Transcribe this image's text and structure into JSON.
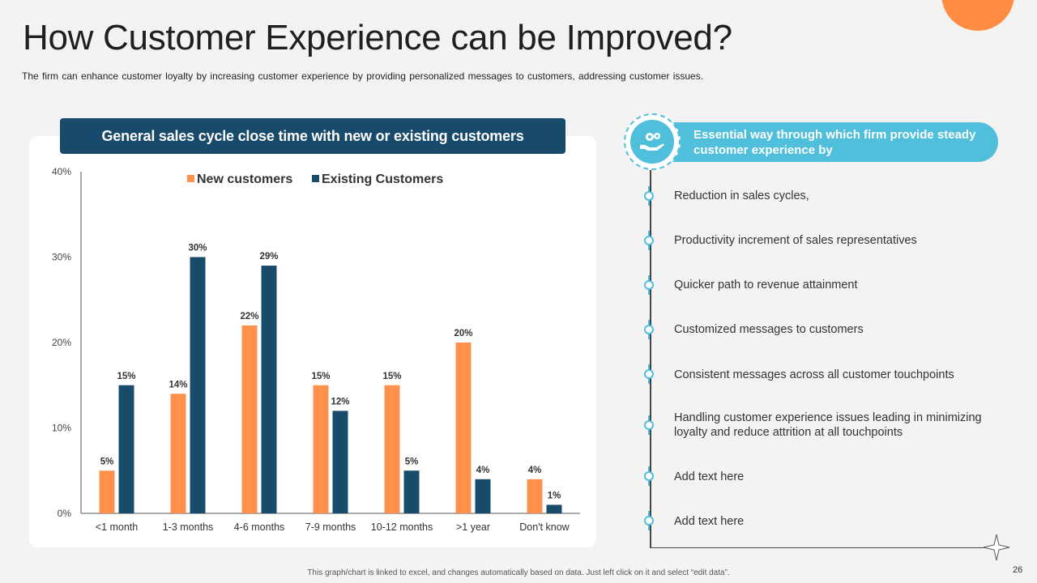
{
  "title": "How Customer Experience can be Improved?",
  "subtitle": "The firm can enhance customer loyalty by increasing customer experience by providing personalized messages to customers, addressing customer issues.",
  "chart_data": {
    "type": "bar",
    "title": "General sales cycle close time with new or existing customers",
    "categories": [
      "<1 month",
      "1-3 months",
      "4-6 months",
      "7-9 months",
      "10-12 months",
      ">1 year",
      "Don't know"
    ],
    "series": [
      {
        "name": "New customers",
        "color": "#ff914d",
        "values": [
          5,
          14,
          22,
          15,
          15,
          20,
          4
        ]
      },
      {
        "name": "Existing Customers",
        "color": "#174a6b",
        "values": [
          15,
          30,
          29,
          12,
          5,
          4,
          1
        ]
      }
    ],
    "ylim": [
      0,
      40
    ],
    "yticks": [
      0,
      10,
      20,
      30,
      40
    ],
    "value_suffix": "%",
    "legend_position": "top",
    "grid": false
  },
  "right_panel": {
    "header": "Essential way through which firm provide steady customer experience by",
    "icon": "hand-gears-icon",
    "accent": "#4fbfdc",
    "items": [
      "Reduction in sales cycles,",
      "Productivity increment of sales representatives",
      "Quicker path to revenue attainment",
      "Customized messages to customers",
      "Consistent messages across all customer touchpoints",
      "Handling customer experience issues leading in minimizing loyalty and reduce attrition at all touchpoints",
      "Add text here",
      "Add text here"
    ]
  },
  "footer": "This graph/chart is linked to excel, and changes automatically based on data. Just left click on it and select “edit data”.",
  "page_number": "26"
}
